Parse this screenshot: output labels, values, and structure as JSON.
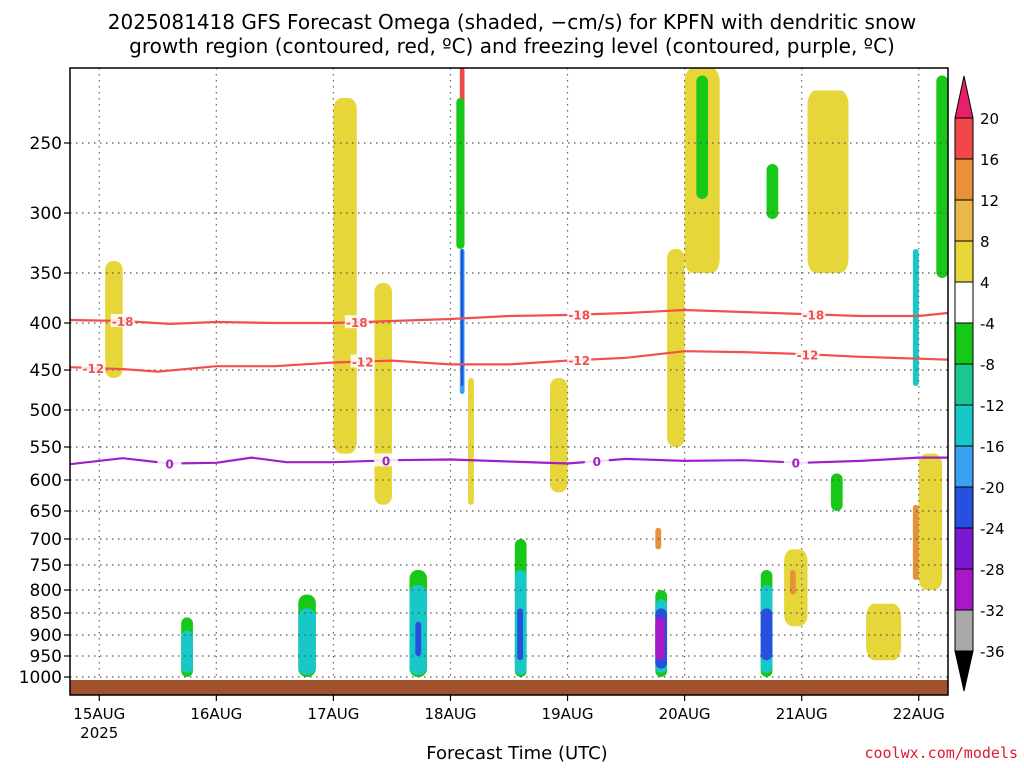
{
  "title_lines": [
    "2025081418 GFS Forecast Omega (shaded, −cm/s) for KPFN with dendritic snow",
    "growth region (contoured, red, ºC) and freezing level (contoured, purple, ºC)"
  ],
  "credit": "coolwx.com/models",
  "colors": {
    "yellow": "#e6d63a",
    "orange_light": "#e8b84a",
    "orange": "#e8903a",
    "red": "#f04848",
    "pink": "#e8206a",
    "green": "#18c818",
    "teal": "#18c890",
    "cyan": "#18c8c8",
    "lightblue": "#3aa0f0",
    "blue": "#2850e0",
    "purple": "#7a1ad0",
    "violet": "#a818c8",
    "gray": "#a8a8a8",
    "black": "#000000",
    "ground": "#a0522d",
    "dgz_line": "#f05050",
    "freezing_line": "#a020c8"
  },
  "chart_data": {
    "type": "heatmap",
    "title": "2025081418 GFS Forecast Omega (shaded, −cm/s) for KPFN with dendritic snow growth region (contoured, red, ºC) and freezing level (contoured, purple, ºC)",
    "xlabel": "Forecast Time (UTC)",
    "ylabel": "",
    "x_ticks": [
      "15AUG",
      "16AUG",
      "17AUG",
      "18AUG",
      "19AUG",
      "20AUG",
      "21AUG",
      "22AUG"
    ],
    "x_tick_year": "2025",
    "x_range_days": [
      14.75,
      22.25
    ],
    "y_ticks": [
      250,
      300,
      350,
      400,
      450,
      500,
      550,
      600,
      650,
      700,
      750,
      800,
      850,
      900,
      950,
      1000
    ],
    "y_axis": "pressure (hPa), inverted",
    "grid": true,
    "colorbar": {
      "labels": [
        20,
        16,
        12,
        8,
        4,
        -4,
        -8,
        -12,
        -16,
        -20,
        -24,
        -28,
        -32,
        -36
      ],
      "colors": [
        "#f04848",
        "#e8903a",
        "#e8b84a",
        "#e6d63a",
        "#ffffff",
        "#18c818",
        "#18c890",
        "#18c8c8",
        "#3aa0f0",
        "#2850e0",
        "#7a1ad0",
        "#a818c8",
        "#a8a8a8"
      ]
    },
    "contours": [
      {
        "name": "-18",
        "color": "#f05050",
        "points": [
          [
            14.75,
            397
          ],
          [
            15.2,
            398
          ],
          [
            15.6,
            401
          ],
          [
            16.0,
            399
          ],
          [
            16.5,
            400
          ],
          [
            17.0,
            400
          ],
          [
            17.5,
            398
          ],
          [
            18.0,
            396
          ],
          [
            18.5,
            393
          ],
          [
            19.0,
            392
          ],
          [
            19.5,
            390
          ],
          [
            20.0,
            387
          ],
          [
            20.5,
            389
          ],
          [
            21.0,
            391
          ],
          [
            21.5,
            393
          ],
          [
            22.0,
            393
          ],
          [
            22.25,
            390
          ]
        ],
        "label_positions": [
          15.2,
          17.2,
          19.1,
          21.1
        ]
      },
      {
        "name": "-12",
        "color": "#f05050",
        "points": [
          [
            14.75,
            447
          ],
          [
            15.2,
            449
          ],
          [
            15.5,
            452
          ],
          [
            16.0,
            446
          ],
          [
            16.5,
            446
          ],
          [
            17.0,
            442
          ],
          [
            17.5,
            440
          ],
          [
            18.0,
            444
          ],
          [
            18.5,
            444
          ],
          [
            19.0,
            440
          ],
          [
            19.5,
            437
          ],
          [
            20.0,
            430
          ],
          [
            20.5,
            431
          ],
          [
            21.0,
            433
          ],
          [
            21.5,
            436
          ],
          [
            22.0,
            438
          ],
          [
            22.25,
            439
          ]
        ],
        "label_positions": [
          14.95,
          17.25,
          19.1,
          21.05
        ]
      },
      {
        "name": "0",
        "color": "#a020c8",
        "points": [
          [
            14.75,
            576
          ],
          [
            15.2,
            567
          ],
          [
            15.6,
            575
          ],
          [
            16.0,
            574
          ],
          [
            16.3,
            566
          ],
          [
            16.6,
            573
          ],
          [
            17.0,
            573
          ],
          [
            17.5,
            570
          ],
          [
            18.0,
            569
          ],
          [
            18.5,
            572
          ],
          [
            19.0,
            575
          ],
          [
            19.5,
            568
          ],
          [
            20.0,
            571
          ],
          [
            20.5,
            570
          ],
          [
            21.0,
            574
          ],
          [
            21.5,
            571
          ],
          [
            22.0,
            566
          ],
          [
            22.25,
            566
          ]
        ],
        "label_positions": [
          15.6,
          17.45,
          19.25,
          20.95
        ]
      }
    ],
    "shaded_regions": [
      {
        "color": "#e6d63a",
        "x": [
          20.0,
          20.3
        ],
        "p": [
          200,
          350
        ]
      },
      {
        "color": "#18c818",
        "x": [
          20.1,
          20.2
        ],
        "p": [
          205,
          290
        ]
      },
      {
        "color": "#e6d63a",
        "x": [
          21.05,
          21.4
        ],
        "p": [
          215,
          350
        ]
      },
      {
        "color": "#18c818",
        "x": [
          20.7,
          20.8
        ],
        "p": [
          265,
          305
        ]
      },
      {
        "color": "#18c818",
        "x": [
          22.15,
          22.25
        ],
        "p": [
          205,
          355
        ]
      },
      {
        "color": "#e8903a",
        "x": [
          19.9,
          19.95
        ],
        "p": [
          340,
          480
        ]
      },
      {
        "color": "#e6d63a",
        "x": [
          19.85,
          20.0
        ],
        "p": [
          330,
          550
        ]
      },
      {
        "color": "#18c8c8",
        "x": [
          21.95,
          22.0
        ],
        "p": [
          330,
          470
        ]
      },
      {
        "color": "#3aa0f0",
        "x": [
          18.08,
          18.12
        ],
        "p": [
          330,
          480
        ]
      },
      {
        "color": "#2850e0",
        "x": [
          18.09,
          18.11
        ],
        "p": [
          330,
          470
        ]
      },
      {
        "color": "#f04848",
        "x": [
          18.08,
          18.12
        ],
        "p": [
          200,
          240
        ]
      },
      {
        "color": "#18c818",
        "x": [
          18.05,
          18.12
        ],
        "p": [
          220,
          330
        ]
      },
      {
        "color": "#e6d63a",
        "x": [
          15.05,
          15.2
        ],
        "p": [
          340,
          460
        ]
      },
      {
        "color": "#e6d63a",
        "x": [
          17.0,
          17.2
        ],
        "p": [
          220,
          560
        ]
      },
      {
        "color": "#e6d63a",
        "x": [
          17.35,
          17.5
        ],
        "p": [
          360,
          640
        ]
      },
      {
        "color": "#e6d63a",
        "x": [
          18.15,
          18.2
        ],
        "p": [
          460,
          640
        ]
      },
      {
        "color": "#e6d63a",
        "x": [
          18.85,
          19.0
        ],
        "p": [
          460,
          620
        ]
      },
      {
        "color": "#e6d63a",
        "x": [
          22.0,
          22.2
        ],
        "p": [
          560,
          800
        ]
      },
      {
        "color": "#e8903a",
        "x": [
          21.95,
          22.0
        ],
        "p": [
          640,
          780
        ]
      },
      {
        "color": "#e6d63a",
        "x": [
          21.55,
          21.85
        ],
        "p": [
          830,
          960
        ]
      },
      {
        "color": "#e6d63a",
        "x": [
          20.85,
          21.05
        ],
        "p": [
          720,
          880
        ]
      },
      {
        "color": "#e8903a",
        "x": [
          20.9,
          20.95
        ],
        "p": [
          760,
          810
        ]
      },
      {
        "color": "#18c818",
        "x": [
          21.25,
          21.35
        ],
        "p": [
          590,
          650
        ]
      },
      {
        "color": "#18c818",
        "x": [
          19.75,
          19.85
        ],
        "p": [
          800,
          1000
        ]
      },
      {
        "color": "#18c8c8",
        "x": [
          19.75,
          19.85
        ],
        "p": [
          820,
          990
        ]
      },
      {
        "color": "#2850e0",
        "x": [
          19.75,
          19.85
        ],
        "p": [
          840,
          980
        ]
      },
      {
        "color": "#a818c8",
        "x": [
          19.75,
          19.83
        ],
        "p": [
          860,
          960
        ]
      },
      {
        "color": "#18c818",
        "x": [
          20.65,
          20.75
        ],
        "p": [
          760,
          1000
        ]
      },
      {
        "color": "#18c8c8",
        "x": [
          20.65,
          20.75
        ],
        "p": [
          790,
          990
        ]
      },
      {
        "color": "#2850e0",
        "x": [
          20.65,
          20.75
        ],
        "p": [
          840,
          960
        ]
      },
      {
        "color": "#18c818",
        "x": [
          15.7,
          15.8
        ],
        "p": [
          860,
          1000
        ]
      },
      {
        "color": "#18c8c8",
        "x": [
          15.7,
          15.8
        ],
        "p": [
          890,
          990
        ]
      },
      {
        "color": "#18c818",
        "x": [
          16.7,
          16.85
        ],
        "p": [
          810,
          1000
        ]
      },
      {
        "color": "#18c8c8",
        "x": [
          16.7,
          16.85
        ],
        "p": [
          840,
          995
        ]
      },
      {
        "color": "#18c818",
        "x": [
          17.65,
          17.8
        ],
        "p": [
          760,
          1000
        ]
      },
      {
        "color": "#18c8c8",
        "x": [
          17.65,
          17.8
        ],
        "p": [
          790,
          995
        ]
      },
      {
        "color": "#2850e0",
        "x": [
          17.7,
          17.75
        ],
        "p": [
          870,
          950
        ]
      },
      {
        "color": "#18c818",
        "x": [
          18.55,
          18.65
        ],
        "p": [
          700,
          1000
        ]
      },
      {
        "color": "#18c8c8",
        "x": [
          18.55,
          18.65
        ],
        "p": [
          760,
          995
        ]
      },
      {
        "color": "#2850e0",
        "x": [
          18.57,
          18.62
        ],
        "p": [
          840,
          960
        ]
      },
      {
        "color": "#e8903a",
        "x": [
          19.75,
          19.8
        ],
        "p": [
          680,
          720
        ]
      }
    ]
  }
}
